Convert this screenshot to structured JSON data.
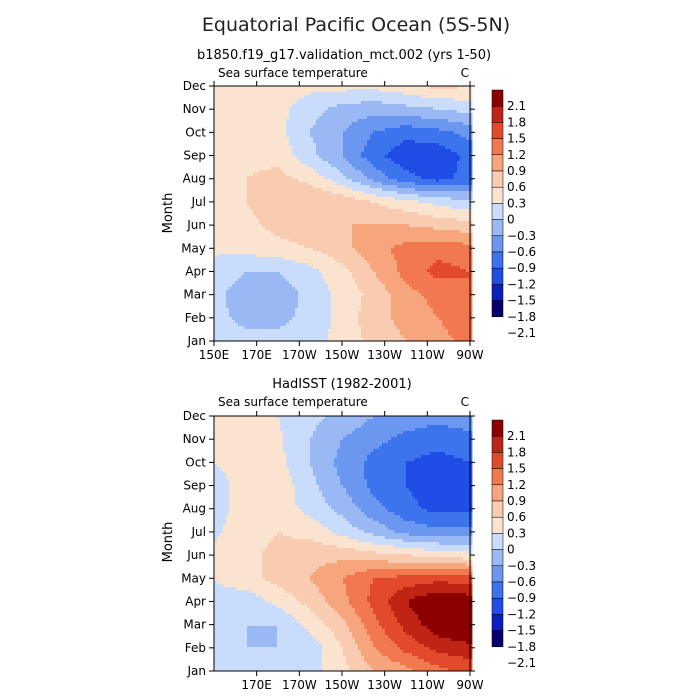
{
  "title": "Equatorial Pacific Ocean (5S-5N)",
  "colors": {
    "palette": [
      "#08006e",
      "#0b1ec0",
      "#1f4de6",
      "#3b74ec",
      "#6c97f0",
      "#9ab8f4",
      "#c9dcfb",
      "#fbe4cf",
      "#f9cbb0",
      "#f6a57c",
      "#f2794f",
      "#e24a2b",
      "#bf2414",
      "#8c0000"
    ]
  },
  "chart_data": [
    {
      "type": "heatmap",
      "title": "b1850.f19_g17.validation_mct.002 (yrs 1-50)",
      "left_label": "Sea surface temperature",
      "right_label": "C",
      "ylabel": "Month",
      "xlabel": "",
      "x_range": [
        150,
        270
      ],
      "x_ticks": [
        {
          "value": 150,
          "label": "150E"
        },
        {
          "value": 170,
          "label": "170E"
        },
        {
          "value": 190,
          "label": "170W"
        },
        {
          "value": 210,
          "label": "150W"
        },
        {
          "value": 230,
          "label": "130W"
        },
        {
          "value": 250,
          "label": "110W"
        },
        {
          "value": 270,
          "label": "90W"
        }
      ],
      "y_ticks": [
        "Jan",
        "Feb",
        "Mar",
        "Apr",
        "May",
        "Jun",
        "Jul",
        "Aug",
        "Sep",
        "Oct",
        "Nov",
        "Dec"
      ],
      "colorbar_labels": [
        "2.1",
        "1.8",
        "1.5",
        "1.2",
        "0.9",
        "0.6",
        "0.3",
        "0",
        "-0.3",
        "-0.6",
        "-0.9",
        "-1.2",
        "-1.5",
        "-1.8",
        "-2.1"
      ],
      "contour_levels": [
        -2.1,
        -1.8,
        -1.5,
        -1.2,
        -0.9,
        -0.6,
        -0.3,
        0,
        0.3,
        0.6,
        0.9,
        1.2,
        1.5,
        1.8,
        2.1
      ],
      "grid_lon": [
        150,
        165,
        180,
        195,
        210,
        225,
        240,
        255,
        270
      ],
      "grid_month": [
        "Jan",
        "Feb",
        "Mar",
        "Apr",
        "May",
        "Jun",
        "Jul",
        "Aug",
        "Sep",
        "Oct",
        "Nov",
        "Dec"
      ],
      "values": [
        [
          -0.1,
          -0.2,
          -0.2,
          -0.1,
          0.1,
          0.4,
          0.6,
          0.8,
          1.0
        ],
        [
          -0.2,
          -0.4,
          -0.4,
          -0.2,
          0.1,
          0.5,
          0.7,
          0.9,
          1.1
        ],
        [
          -0.2,
          -0.5,
          -0.5,
          -0.2,
          0.1,
          0.4,
          0.8,
          1.0,
          1.2
        ],
        [
          -0.1,
          -0.3,
          -0.3,
          -0.1,
          0.2,
          0.6,
          1.0,
          1.3,
          1.2
        ],
        [
          0.05,
          0.1,
          0.2,
          0.3,
          0.5,
          0.8,
          1.0,
          1.1,
          1.0
        ],
        [
          0.1,
          0.2,
          0.4,
          0.5,
          0.6,
          0.6,
          0.6,
          0.5,
          0.4
        ],
        [
          0.1,
          0.3,
          0.5,
          0.6,
          0.5,
          0.3,
          0.1,
          -0.1,
          -0.2
        ],
        [
          0.05,
          0.3,
          0.4,
          0.2,
          -0.2,
          -0.7,
          -1.1,
          -1.3,
          -1.1
        ],
        [
          0.0,
          0.2,
          0.2,
          -0.2,
          -0.6,
          -1.1,
          -1.4,
          -1.4,
          -1.1
        ],
        [
          0.05,
          0.2,
          0.1,
          -0.3,
          -0.6,
          -0.9,
          -1.1,
          -1.0,
          -0.8
        ],
        [
          0.1,
          0.2,
          0.1,
          -0.2,
          -0.4,
          -0.5,
          -0.4,
          -0.3,
          -0.2
        ],
        [
          0.1,
          0.2,
          0.15,
          0.1,
          0.1,
          0.1,
          0.2,
          0.4,
          0.3
        ]
      ]
    },
    {
      "type": "heatmap",
      "title": "HadISST (1982-2001)",
      "left_label": "Sea surface temperature",
      "right_label": "C",
      "ylabel": "Month",
      "xlabel": "",
      "x_range": [
        150,
        270
      ],
      "x_ticks": [
        {
          "value": 170,
          "label": "170E"
        },
        {
          "value": 190,
          "label": "170W"
        },
        {
          "value": 210,
          "label": "150W"
        },
        {
          "value": 230,
          "label": "130W"
        },
        {
          "value": 250,
          "label": "110W"
        },
        {
          "value": 270,
          "label": "90W"
        }
      ],
      "y_ticks": [
        "Jan",
        "Feb",
        "Mar",
        "Apr",
        "May",
        "Jun",
        "Jul",
        "Aug",
        "Sep",
        "Oct",
        "Nov",
        "Dec"
      ],
      "colorbar_labels": [
        "2.1",
        "1.8",
        "1.5",
        "1.2",
        "0.9",
        "0.6",
        "0.3",
        "0",
        "-0.3",
        "-0.6",
        "-0.9",
        "-1.2",
        "-1.5",
        "-1.8",
        "-2.1"
      ],
      "contour_levels": [
        -2.1,
        -1.8,
        -1.5,
        -1.2,
        -0.9,
        -0.6,
        -0.3,
        0,
        0.3,
        0.6,
        0.9,
        1.2,
        1.5,
        1.8,
        2.1
      ],
      "grid_lon": [
        150,
        165,
        180,
        195,
        210,
        225,
        240,
        255,
        270
      ],
      "grid_month": [
        "Jan",
        "Feb",
        "Mar",
        "Apr",
        "May",
        "Jun",
        "Jul",
        "Aug",
        "Sep",
        "Oct",
        "Nov",
        "Dec"
      ],
      "values": [
        [
          0.0,
          -0.1,
          -0.2,
          -0.1,
          0.2,
          0.6,
          0.8,
          1.1,
          1.3
        ],
        [
          -0.1,
          -0.3,
          -0.3,
          -0.2,
          0.3,
          0.9,
          1.3,
          1.6,
          1.7
        ],
        [
          -0.1,
          -0.3,
          -0.3,
          0.1,
          0.5,
          1.1,
          1.6,
          2.0,
          2.2
        ],
        [
          -0.1,
          -0.2,
          0.1,
          0.4,
          0.8,
          1.3,
          1.8,
          2.1,
          2.0
        ],
        [
          0.0,
          0.2,
          0.4,
          0.6,
          0.9,
          1.2,
          1.3,
          1.4,
          1.3
        ],
        [
          0.05,
          0.2,
          0.4,
          0.5,
          0.5,
          0.4,
          0.3,
          0.2,
          0.1
        ],
        [
          -0.05,
          0.15,
          0.3,
          0.2,
          -0.1,
          -0.4,
          -0.7,
          -0.8,
          -0.8
        ],
        [
          -0.1,
          0.1,
          0.15,
          -0.1,
          -0.4,
          -0.8,
          -1.1,
          -1.3,
          -1.3
        ],
        [
          -0.1,
          0.1,
          0.2,
          -0.2,
          -0.6,
          -1.0,
          -1.2,
          -1.4,
          -1.4
        ],
        [
          0.0,
          0.1,
          0.1,
          -0.3,
          -0.7,
          -1.0,
          -1.2,
          -1.3,
          -1.2
        ],
        [
          0.05,
          0.1,
          0.05,
          -0.3,
          -0.6,
          -0.8,
          -1.0,
          -1.1,
          -1.0
        ],
        [
          0.05,
          0.1,
          0.0,
          -0.2,
          -0.4,
          -0.6,
          -0.7,
          -0.8,
          -0.7
        ]
      ]
    }
  ]
}
